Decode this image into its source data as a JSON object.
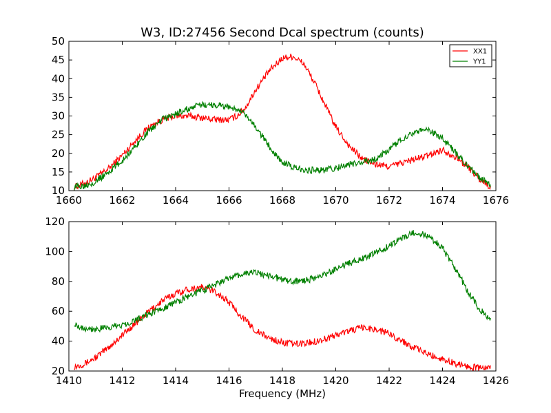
{
  "chart_data": [
    {
      "type": "line",
      "title": "W3, ID:27456 Second Dcal spectrum (counts)",
      "xlabel": "",
      "ylabel": "",
      "xlim": [
        1660,
        1676
      ],
      "ylim": [
        10,
        50
      ],
      "xticks": [
        "1660",
        "1662",
        "1664",
        "1666",
        "1668",
        "1670",
        "1672",
        "1674",
        "1676"
      ],
      "yticks": [
        "10",
        "15",
        "20",
        "25",
        "30",
        "35",
        "40",
        "45",
        "50"
      ],
      "legend": {
        "placement": "top-right",
        "entries": [
          "XX1",
          "YY1"
        ]
      },
      "series": [
        {
          "name": "XX1",
          "color": "#ff0000",
          "x": [
            1660.2,
            1660.6,
            1661.0,
            1661.5,
            1662.0,
            1662.5,
            1663.0,
            1663.5,
            1664.0,
            1664.5,
            1665.0,
            1665.5,
            1666.0,
            1666.3,
            1666.6,
            1667.0,
            1667.5,
            1668.0,
            1668.4,
            1668.8,
            1669.2,
            1669.6,
            1670.0,
            1670.5,
            1671.0,
            1671.5,
            1672.0,
            1672.5,
            1673.0,
            1673.5,
            1674.0,
            1674.5,
            1675.0,
            1675.4,
            1675.8
          ],
          "y": [
            11,
            12,
            13.5,
            16,
            19.5,
            23.5,
            27,
            29,
            30,
            30,
            29.5,
            29,
            29,
            30,
            32,
            37,
            42,
            45.5,
            46,
            44,
            39,
            33,
            27,
            22,
            18.5,
            17,
            16.5,
            17.5,
            18.5,
            19.5,
            21,
            19,
            16,
            13,
            11
          ]
        },
        {
          "name": "YY1",
          "color": "#008000",
          "x": [
            1660.2,
            1660.6,
            1661.0,
            1661.5,
            1662.0,
            1662.5,
            1663.0,
            1663.5,
            1664.0,
            1664.5,
            1665.0,
            1665.5,
            1666.0,
            1666.5,
            1667.0,
            1667.5,
            1668.0,
            1668.5,
            1669.0,
            1669.5,
            1670.0,
            1670.5,
            1671.0,
            1671.5,
            1672.0,
            1672.5,
            1673.0,
            1673.5,
            1674.0,
            1674.5,
            1675.0,
            1675.4,
            1675.8
          ],
          "y": [
            11,
            11.5,
            12.5,
            15,
            18,
            22,
            26,
            29,
            30.5,
            32,
            33,
            33,
            32.5,
            31,
            27,
            22,
            17.5,
            16,
            15.5,
            15.5,
            16,
            17,
            17.5,
            18.5,
            21,
            24,
            26,
            26,
            24,
            20,
            16,
            13.5,
            11.5
          ]
        }
      ]
    },
    {
      "type": "line",
      "title": "",
      "xlabel": "Frequency (MHz)",
      "ylabel": "",
      "xlim": [
        1410,
        1426
      ],
      "ylim": [
        20,
        120
      ],
      "xticks": [
        "1410",
        "1412",
        "1414",
        "1416",
        "1418",
        "1420",
        "1422",
        "1424",
        "1426"
      ],
      "yticks": [
        "20",
        "40",
        "60",
        "80",
        "100",
        "120"
      ],
      "series": [
        {
          "name": "XX1",
          "color": "#ff0000",
          "x": [
            1410.2,
            1410.6,
            1411.0,
            1411.5,
            1412.0,
            1412.5,
            1413.0,
            1413.5,
            1414.0,
            1414.5,
            1415.0,
            1415.5,
            1416.0,
            1416.5,
            1417.0,
            1417.5,
            1418.0,
            1418.5,
            1419.0,
            1419.5,
            1420.0,
            1420.5,
            1421.0,
            1421.5,
            1422.0,
            1422.5,
            1423.0,
            1423.5,
            1424.0,
            1424.5,
            1425.0,
            1425.4,
            1425.8
          ],
          "y": [
            23,
            25,
            29,
            36,
            44,
            52,
            60,
            67,
            72,
            75,
            76,
            73,
            66,
            56,
            47,
            42,
            39,
            38,
            39,
            41,
            44,
            47,
            49,
            48,
            45,
            40,
            35,
            31,
            28,
            25,
            23,
            22,
            22
          ]
        },
        {
          "name": "YY1",
          "color": "#008000",
          "x": [
            1410.2,
            1410.5,
            1411.0,
            1411.5,
            1412.0,
            1412.5,
            1413.0,
            1413.5,
            1414.0,
            1414.5,
            1415.0,
            1415.5,
            1416.0,
            1416.5,
            1417.0,
            1417.5,
            1418.0,
            1418.5,
            1419.0,
            1419.5,
            1420.0,
            1420.5,
            1421.0,
            1421.5,
            1422.0,
            1422.5,
            1423.0,
            1423.5,
            1424.0,
            1424.5,
            1425.0,
            1425.4,
            1425.8
          ],
          "y": [
            52,
            49,
            48,
            49,
            51,
            54,
            58,
            62,
            66,
            70,
            74,
            78,
            82,
            85,
            86,
            84,
            81,
            80,
            81,
            84,
            88,
            92,
            95,
            99,
            104,
            109,
            113,
            110,
            102,
            88,
            72,
            61,
            54
          ]
        }
      ]
    }
  ]
}
